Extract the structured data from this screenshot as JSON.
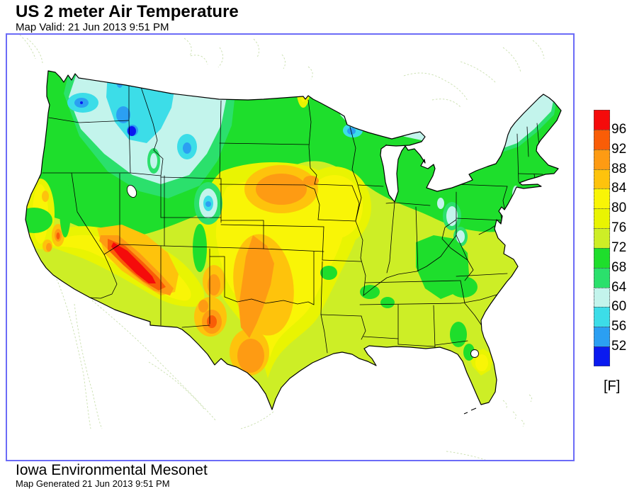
{
  "header": {
    "title": "US 2 meter Air Temperature",
    "subtitle": "Map Valid: 21 Jun 2013 9:51 PM"
  },
  "footer": {
    "org": "Iowa Environmental Mesonet",
    "generated": "Map Generated 21 Jun 2013 9:51 PM"
  },
  "legend": {
    "unit_label": "[F]",
    "tick_values": [
      "96",
      "92",
      "88",
      "84",
      "80",
      "76",
      "72",
      "68",
      "64",
      "60",
      "56",
      "52"
    ],
    "colors_top_to_bottom": [
      "#f50b0b",
      "#f95d07",
      "#fe9b13",
      "#fec30c",
      "#f9f506",
      "#e9f402",
      "#cdee26",
      "#1ede2c",
      "#2be06c",
      "#c3f4ec",
      "#3cdde8",
      "#2b9ff2",
      "#0a1af0"
    ]
  },
  "map": {
    "frame_border_color": "#6b6bf7",
    "background_color": "#ffffff",
    "temperature_bands_f": {
      "T96p": "#f50b0b",
      "T92": "#f95d07",
      "T88": "#fe9b13",
      "T84": "#fec30c",
      "T80": "#f9f506",
      "T76": "#e9f402",
      "T72": "#cdee26",
      "T68": "#1ede2c",
      "T64": "#2be06c",
      "T60": "#c3f4ec",
      "T56": "#3cdde8",
      "T52": "#2b9ff2",
      "T52m": "#0a1af0"
    }
  }
}
